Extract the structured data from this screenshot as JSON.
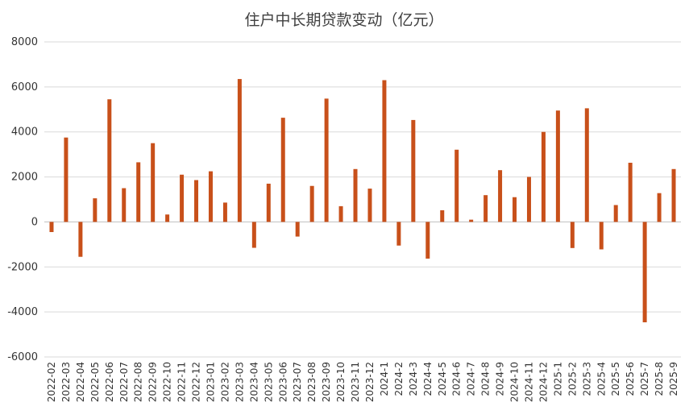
{
  "chart_data": {
    "type": "bar",
    "title": "住户中长期贷款变动（亿元）",
    "xlabel": "",
    "ylabel": "",
    "ylim": [
      -6000,
      8000
    ],
    "yticks": [
      8000,
      6000,
      4000,
      2000,
      0,
      -2000,
      -4000,
      -6000
    ],
    "grid": true,
    "legend": "none",
    "bar_color": "#c8501a",
    "categories": [
      "2022-02",
      "2022-03",
      "2022-04",
      "2022-05",
      "2022-06",
      "2022-07",
      "2022-08",
      "2022-09",
      "2022-10",
      "2022-11",
      "2022-12",
      "2023-01",
      "2023-02",
      "2023-03",
      "2023-04",
      "2023-05",
      "2023-06",
      "2023-07",
      "2023-08",
      "2023-09",
      "2023-10",
      "2023-11",
      "2023-12",
      "2024-1",
      "2024-2",
      "2024-3",
      "2024-4",
      "2024-5",
      "2024-6",
      "2024-7",
      "2024-8",
      "2024-9",
      "2024-10",
      "2024-11",
      "2024-12",
      "2025-1",
      "2025-2",
      "2025-3",
      "2025-4",
      "2025-5",
      "2025-6",
      "2025-7",
      "2025-8",
      "2025-9"
    ],
    "values": [
      -450,
      3750,
      -1550,
      1050,
      5450,
      1500,
      2650,
      3500,
      330,
      2100,
      1860,
      2250,
      860,
      6350,
      -1150,
      1700,
      4630,
      -650,
      1600,
      5480,
      700,
      2350,
      1480,
      6300,
      -1050,
      4530,
      -1630,
      520,
      3210,
      100,
      1190,
      2300,
      1100,
      2000,
      4000,
      4950,
      -1160,
      5050,
      -1220,
      750,
      2630,
      -4460,
      1280,
      2350
    ]
  }
}
